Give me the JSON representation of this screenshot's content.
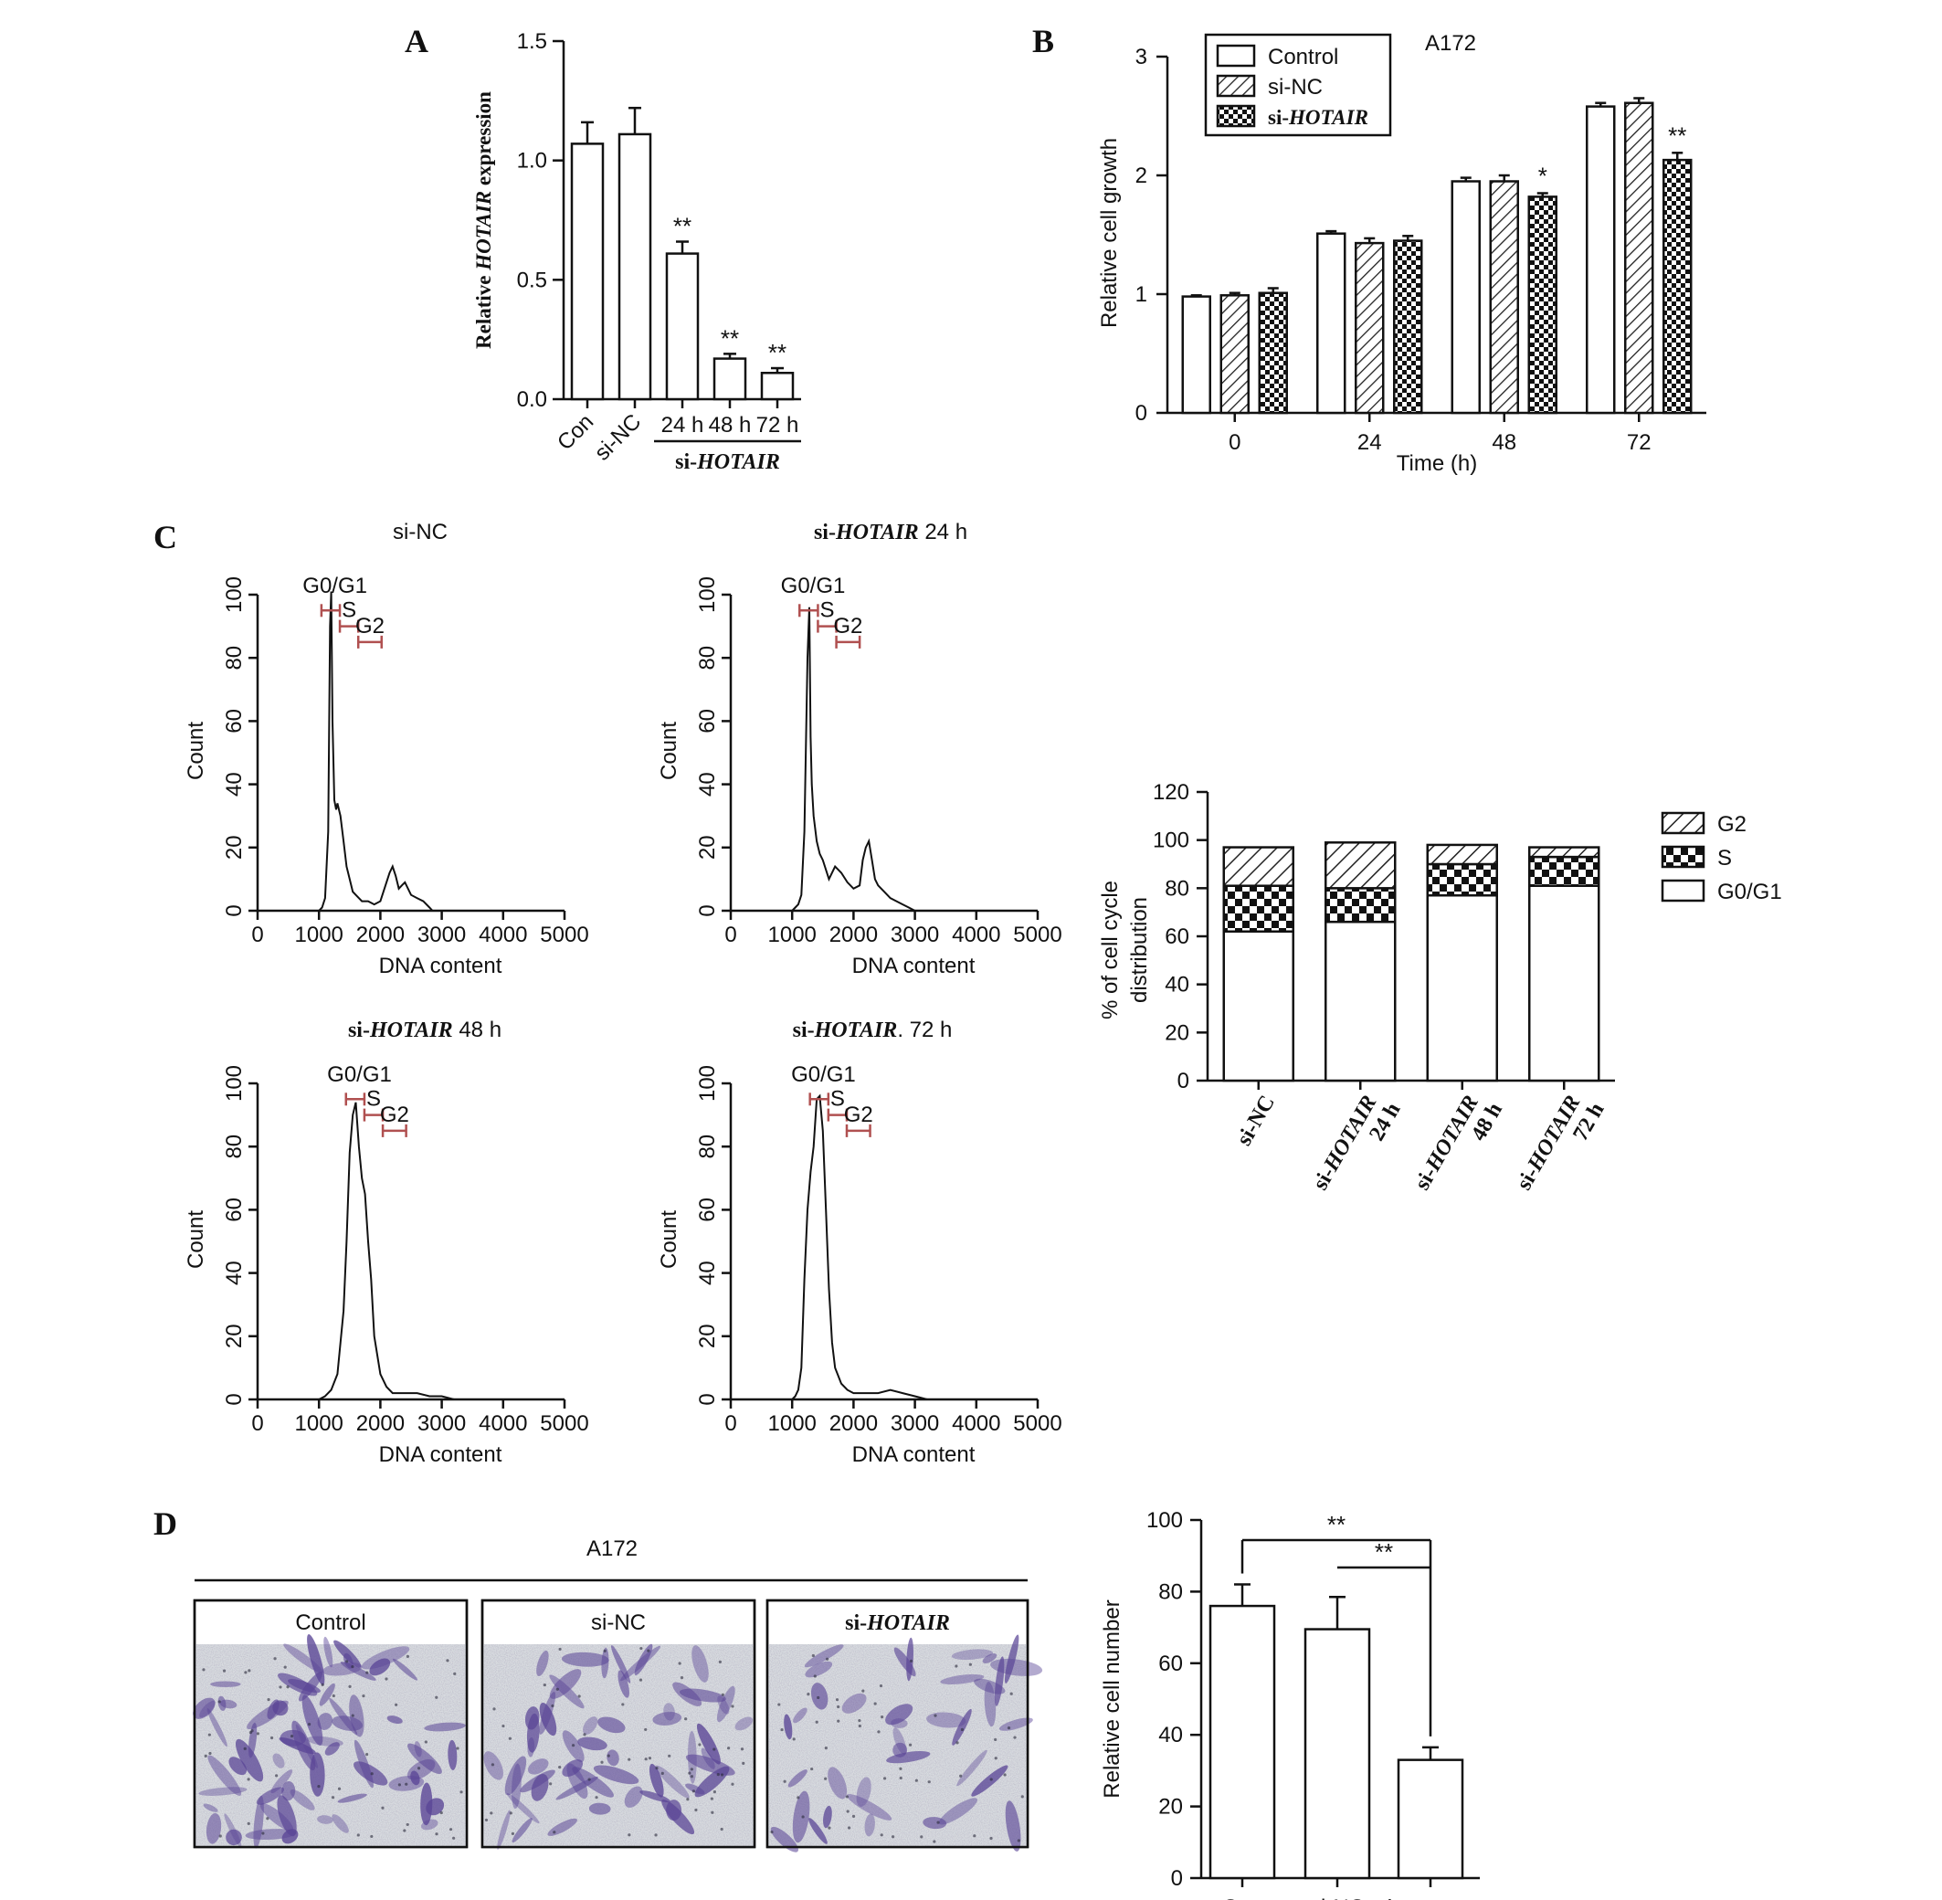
{
  "panel_labels": {
    "a": "A",
    "b": "B",
    "c": "C",
    "d": "D"
  },
  "chart_data": [
    {
      "id": "A",
      "type": "bar",
      "ylabel_prefix": "Relative ",
      "ylabel_italic": "HOTAIR",
      "ylabel_suffix": " expression",
      "ylim": [
        0,
        1.5
      ],
      "yticks": [
        "0.0",
        "0.5",
        "1.0",
        "1.5"
      ],
      "categories": [
        "Con",
        "si-NC",
        "24 h",
        "48 h",
        "72 h"
      ],
      "values": [
        1.07,
        1.11,
        0.61,
        0.17,
        0.11
      ],
      "errors": [
        0.09,
        0.11,
        0.05,
        0.02,
        0.02
      ],
      "significance": [
        "",
        "",
        "**",
        "**",
        "**"
      ],
      "group_label_prefix": "si-",
      "group_label_italic": "HOTAIR"
    },
    {
      "id": "B",
      "type": "bar",
      "title": "A172",
      "xlabel": "Time (h)",
      "ylabel": "Relative cell growth",
      "ylim": [
        0,
        3
      ],
      "yticks": [
        "0",
        "1",
        "2",
        "3"
      ],
      "categories": [
        "0",
        "24",
        "48",
        "72"
      ],
      "series": [
        {
          "name": "Control",
          "pattern": "white",
          "values": [
            0.98,
            1.51,
            1.95,
            2.58
          ],
          "errors": [
            0.01,
            0.02,
            0.03,
            0.03
          ]
        },
        {
          "name": "si-NC",
          "pattern": "hatch",
          "values": [
            0.99,
            1.43,
            1.95,
            2.61
          ],
          "errors": [
            0.02,
            0.04,
            0.05,
            0.04
          ]
        },
        {
          "name": "si-",
          "name_italic": "HOTAIR",
          "pattern": "checker",
          "values": [
            1.01,
            1.45,
            1.82,
            2.13
          ],
          "errors": [
            0.04,
            0.04,
            0.03,
            0.06
          ]
        }
      ],
      "significance": [
        [
          "",
          "",
          ""
        ],
        [
          "",
          "",
          ""
        ],
        [
          "",
          "",
          "*"
        ],
        [
          "",
          "",
          "**"
        ]
      ],
      "legend_position": "top-left"
    },
    {
      "id": "C-hist",
      "type": "line",
      "xlabel": "DNA content",
      "ylabel": "Count",
      "xlim": [
        0,
        5000
      ],
      "ylim": [
        0,
        100
      ],
      "xticks": [
        "0",
        "1000",
        "2000",
        "3000",
        "4000",
        "5000"
      ],
      "yticks": [
        "0",
        "20",
        "40",
        "60",
        "80",
        "100"
      ],
      "gates": [
        "G0/G1",
        "S",
        "G2"
      ],
      "plots": [
        {
          "title_prefix": "si-NC",
          "title_italic": "",
          "title_suffix": "",
          "x": [
            1000,
            1050,
            1100,
            1150,
            1180,
            1200,
            1220,
            1250,
            1280,
            1300,
            1350,
            1400,
            1450,
            1500,
            1550,
            1600,
            1650,
            1700,
            1800,
            1900,
            2000,
            2100,
            2150,
            2200,
            2250,
            2300,
            2350,
            2400,
            2500,
            2600,
            2700,
            2800,
            2850,
            2900
          ],
          "y": [
            0,
            1,
            4,
            25,
            90,
            101,
            60,
            35,
            32,
            34,
            30,
            22,
            14,
            10,
            6,
            5,
            4,
            3,
            3,
            2,
            3,
            9,
            12,
            14,
            11,
            7,
            8,
            9,
            5,
            4,
            3,
            1,
            0,
            0
          ]
        },
        {
          "title_prefix": "si-",
          "title_italic": "HOTAIR",
          "title_suffix": " 24 h",
          "x": [
            1000,
            1050,
            1100,
            1150,
            1200,
            1250,
            1280,
            1300,
            1320,
            1350,
            1400,
            1450,
            1500,
            1600,
            1700,
            1800,
            1900,
            2000,
            2100,
            2150,
            2200,
            2250,
            2300,
            2350,
            2400,
            2500,
            2600,
            2700,
            2800,
            2900,
            3000
          ],
          "y": [
            0,
            1,
            2,
            5,
            25,
            80,
            96,
            55,
            40,
            30,
            22,
            18,
            16,
            10,
            14,
            12,
            9,
            7,
            8,
            16,
            20,
            22,
            16,
            10,
            8,
            6,
            4,
            3,
            2,
            1,
            0
          ]
        },
        {
          "title_prefix": "si-",
          "title_italic": "HOTAIR",
          "title_suffix": " 48 h",
          "x": [
            1000,
            1100,
            1200,
            1300,
            1400,
            1450,
            1500,
            1550,
            1600,
            1650,
            1700,
            1750,
            1800,
            1850,
            1900,
            2000,
            2100,
            2200,
            2400,
            2600,
            2800,
            3000,
            3200
          ],
          "y": [
            0,
            1,
            3,
            8,
            28,
            50,
            78,
            90,
            94,
            80,
            70,
            65,
            50,
            38,
            20,
            8,
            4,
            2,
            2,
            2,
            1,
            1,
            0
          ]
        },
        {
          "title_prefix": "si-",
          "title_italic": "HOTAIR",
          "title_suffix": ". 72 h",
          "x": [
            1000,
            1050,
            1100,
            1150,
            1200,
            1250,
            1300,
            1350,
            1400,
            1450,
            1500,
            1550,
            1600,
            1650,
            1700,
            1800,
            1900,
            2000,
            2200,
            2400,
            2600,
            2800,
            3000,
            3200
          ],
          "y": [
            0,
            1,
            3,
            10,
            38,
            60,
            72,
            80,
            95,
            96,
            85,
            60,
            35,
            18,
            10,
            5,
            3,
            2,
            2,
            2,
            3,
            2,
            1,
            0
          ]
        }
      ]
    },
    {
      "id": "C-bar",
      "type": "bar",
      "ylabel_line1": "% of cell cycle",
      "ylabel_line2": "distribution",
      "ylim": [
        0,
        120
      ],
      "yticks": [
        "0",
        "20",
        "40",
        "60",
        "80",
        "100",
        "120"
      ],
      "categories": [
        {
          "prefix": "si-NC",
          "italic": "",
          "line2": ""
        },
        {
          "prefix": "si-",
          "italic": "HOTAIR",
          "line2": "24 h"
        },
        {
          "prefix": "si-",
          "italic": "HOTAIR",
          "line2": "48 h"
        },
        {
          "prefix": "si-",
          "italic": "HOTAIR",
          "line2": "72 h"
        }
      ],
      "series": [
        {
          "name": "G0/G1",
          "pattern": "white",
          "values": [
            62,
            66,
            77,
            81
          ]
        },
        {
          "name": "S",
          "pattern": "checker",
          "values": [
            19,
            14,
            13,
            12
          ]
        },
        {
          "name": "G2",
          "pattern": "hatch",
          "values": [
            16,
            19,
            8,
            4
          ]
        }
      ],
      "legend_position": "right"
    },
    {
      "id": "D",
      "type": "bar",
      "ylabel": "Relative cell number",
      "ylim": [
        0,
        100
      ],
      "yticks": [
        "0",
        "20",
        "40",
        "60",
        "80",
        "100"
      ],
      "categories": [
        {
          "prefix": "Con",
          "italic": ""
        },
        {
          "prefix": "si-NC",
          "italic": ""
        },
        {
          "prefix": "si-",
          "italic": "HOTAIR"
        }
      ],
      "values": [
        76,
        69.5,
        33
      ],
      "errors": [
        6,
        9,
        3.5
      ],
      "significance_brackets": [
        "**",
        "**"
      ]
    }
  ],
  "micrographs": {
    "title": "A172",
    "panels": [
      {
        "label_prefix": "Control",
        "label_italic": ""
      },
      {
        "label_prefix": "si-NC",
        "label_italic": ""
      },
      {
        "label_prefix": "si-",
        "label_italic": "HOTAIR"
      }
    ]
  },
  "colors": {
    "ink": "#111111",
    "gate": "#b05050",
    "stain": "#5a4596",
    "background_field": "#d9dce0"
  }
}
